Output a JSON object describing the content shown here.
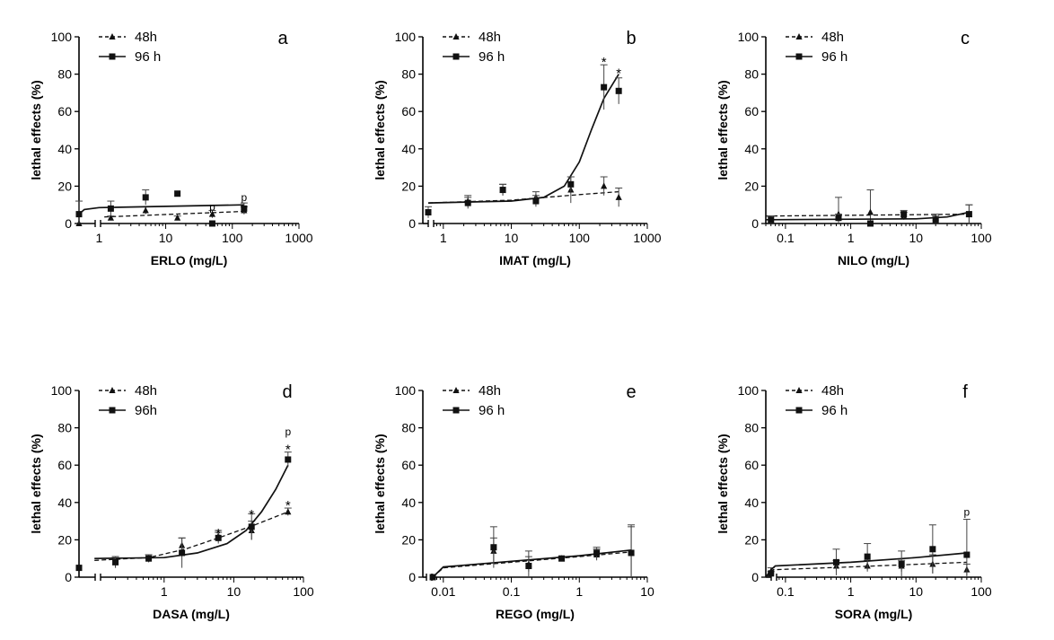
{
  "chart_data": [
    {
      "type": "scatter",
      "panel_label": "a",
      "xlabel": "ERLO (mg/L)",
      "ylabel": "lethal effects (%)",
      "xscale": "log",
      "xlim": [
        0.5,
        1000
      ],
      "ylim": [
        0,
        100
      ],
      "ytick_labels": [
        "0",
        "20",
        "40",
        "60",
        "80",
        "100"
      ],
      "xtick_labels": [
        "1",
        "10",
        "100",
        "1000"
      ],
      "legend": [
        "48h",
        "96 h"
      ],
      "legend_position": "top-left",
      "series": [
        {
          "name": "48h",
          "marker": "triangle",
          "line": "dashed",
          "x": [
            0.5,
            1.5,
            5,
            15,
            50,
            150
          ],
          "y": [
            0,
            3,
            7,
            3,
            5,
            7
          ],
          "err": [
            0,
            1,
            2,
            1,
            2,
            2
          ],
          "fit": [
            [
              1.2,
              3.5
            ],
            [
              150,
              6.5
            ]
          ]
        },
        {
          "name": "96 h",
          "marker": "square",
          "line": "solid",
          "x": [
            0.5,
            1.5,
            5,
            15,
            50,
            150
          ],
          "y": [
            5,
            8,
            14,
            16,
            0,
            8
          ],
          "err": [
            7,
            4,
            4,
            0,
            0,
            3
          ],
          "fit": [
            [
              0.5,
              5
            ],
            [
              0.6,
              7.5
            ],
            [
              1,
              8.5
            ],
            [
              150,
              10
            ]
          ]
        }
      ],
      "annotations": [
        {
          "text": "p",
          "x": 50,
          "y": 7
        },
        {
          "text": "p",
          "x": 150,
          "y": 12
        }
      ]
    },
    {
      "type": "scatter",
      "panel_label": "b",
      "xlabel": "IMAT (mg/L)",
      "ylabel": "lethal effects (%)",
      "xscale": "log",
      "xlim": [
        0.5,
        1000
      ],
      "ylim": [
        0,
        100
      ],
      "ytick_labels": [
        "0",
        "20",
        "40",
        "60",
        "80",
        "100"
      ],
      "xtick_labels": [
        "1",
        "10",
        "100",
        "1000"
      ],
      "legend": [
        "48h",
        "96 h"
      ],
      "legend_position": "top-left",
      "series": [
        {
          "name": "48h",
          "marker": "triangle",
          "line": "dashed",
          "x": [
            2.3,
            7.5,
            23,
            75,
            230,
            380
          ],
          "y": [
            12,
            18,
            14,
            18,
            20,
            14
          ],
          "err": [
            3,
            3,
            3,
            7,
            5,
            5
          ],
          "fit": [
            [
              0.6,
              11
            ],
            [
              10,
              12.5
            ],
            [
              100,
              15.5
            ],
            [
              380,
              17
            ]
          ]
        },
        {
          "name": "96 h",
          "marker": "square",
          "line": "solid",
          "x": [
            0.6,
            2.3,
            7.5,
            23,
            75,
            230,
            380
          ],
          "y": [
            6,
            11,
            18,
            12,
            21,
            73,
            71
          ],
          "err": [
            3,
            3,
            3,
            3,
            4,
            12,
            7
          ],
          "fit": [
            [
              0.6,
              11
            ],
            [
              10,
              12
            ],
            [
              30,
              14
            ],
            [
              60,
              20
            ],
            [
              100,
              33
            ],
            [
              150,
              50
            ],
            [
              230,
              67
            ],
            [
              380,
              80
            ]
          ]
        }
      ],
      "annotations": [
        {
          "text": "*",
          "x": 230,
          "y": 88
        },
        {
          "text": "*",
          "x": 380,
          "y": 82
        }
      ]
    },
    {
      "type": "scatter",
      "panel_label": "c",
      "xlabel": "NILO (mg/L)",
      "ylabel": "lethal effects (%)",
      "xscale": "log",
      "xlim": [
        0.05,
        100
      ],
      "ylim": [
        0,
        100
      ],
      "ytick_labels": [
        "0",
        "20",
        "40",
        "60",
        "80",
        "100"
      ],
      "xtick_labels": [
        "0.1",
        "1",
        "10",
        "100"
      ],
      "legend": [
        "48h",
        "96 h"
      ],
      "legend_position": "top-left",
      "series": [
        {
          "name": "48h",
          "marker": "triangle",
          "line": "dashed",
          "x": [
            0.06,
            0.65,
            2,
            6.5,
            20,
            65
          ],
          "y": [
            2,
            5,
            6,
            4,
            3,
            5
          ],
          "err": [
            2,
            9,
            12,
            2,
            2,
            5
          ],
          "fit": [
            [
              0.05,
              4
            ],
            [
              65,
              5
            ]
          ]
        },
        {
          "name": "96 h",
          "marker": "square",
          "line": "solid",
          "x": [
            0.06,
            0.65,
            2,
            6.5,
            20,
            65
          ],
          "y": [
            2,
            3,
            0,
            5,
            2,
            5
          ],
          "err": [
            2,
            2,
            0,
            2,
            2,
            5
          ],
          "fit": [
            [
              0.05,
              2
            ],
            [
              10,
              2.5
            ],
            [
              30,
              3.5
            ],
            [
              65,
              6
            ]
          ]
        }
      ],
      "annotations": []
    },
    {
      "type": "scatter",
      "panel_label": "d",
      "xlabel": "DASA (mg/L)",
      "ylabel": "lethal effects (%)",
      "xscale": "log",
      "xlim": [
        0.06,
        100
      ],
      "ylim": [
        0,
        100
      ],
      "ytick_labels": [
        "0",
        "20",
        "40",
        "60",
        "80",
        "100"
      ],
      "xtick_labels": [
        "1",
        "10",
        "100"
      ],
      "legend": [
        "48h",
        "96h"
      ],
      "legend_position": "top-left",
      "series": [
        {
          "name": "48h",
          "marker": "triangle",
          "line": "dashed",
          "x": [
            0.2,
            0.6,
            1.8,
            6,
            18,
            60
          ],
          "y": [
            8,
            10,
            17,
            22,
            25,
            35
          ],
          "err": [
            3,
            2,
            4,
            3,
            5,
            2
          ],
          "fit": [
            [
              0.1,
              9
            ],
            [
              0.6,
              10.5
            ],
            [
              2,
              15
            ],
            [
              6,
              21
            ],
            [
              20,
              28
            ],
            [
              60,
              35
            ]
          ]
        },
        {
          "name": "96h",
          "marker": "square",
          "line": "solid",
          "x": [
            0.06,
            0.2,
            0.6,
            1.8,
            6,
            18,
            60
          ],
          "y": [
            5,
            8,
            10,
            13,
            21,
            27,
            63
          ],
          "err": [
            0,
            3,
            2,
            8,
            3,
            7,
            4
          ],
          "fit": [
            [
              0.1,
              10
            ],
            [
              1,
              10.5
            ],
            [
              3,
              13
            ],
            [
              8,
              18
            ],
            [
              15,
              25
            ],
            [
              25,
              35
            ],
            [
              40,
              47
            ],
            [
              60,
              60
            ]
          ]
        }
      ],
      "annotations": [
        {
          "text": "*",
          "x": 6,
          "y": 25
        },
        {
          "text": "*",
          "x": 18,
          "y": 35
        },
        {
          "text": "*",
          "x": 60,
          "y": 40
        },
        {
          "text": "*",
          "x": 60,
          "y": 70
        },
        {
          "text": "p",
          "x": 60,
          "y": 76
        }
      ]
    },
    {
      "type": "scatter",
      "panel_label": "e",
      "xlabel": "REGO (mg/L)",
      "ylabel": "lethal effects (%)",
      "xscale": "log",
      "xlim": [
        0.005,
        10
      ],
      "ylim": [
        0,
        100
      ],
      "ytick_labels": [
        "0",
        "20",
        "40",
        "60",
        "80",
        "100"
      ],
      "xtick_labels": [
        "0.01",
        "0.1",
        "1",
        "10"
      ],
      "legend": [
        "48h",
        "96 h"
      ],
      "legend_position": "top-left",
      "series": [
        {
          "name": "48h",
          "marker": "triangle",
          "line": "dashed",
          "x": [
            0.007,
            0.055,
            0.18,
            0.55,
            1.8,
            5.8
          ],
          "y": [
            0,
            14,
            7,
            10,
            12,
            13
          ],
          "err": [
            0,
            7,
            4,
            1,
            3,
            14
          ],
          "fit": [
            [
              0.007,
              0
            ],
            [
              0.01,
              5
            ],
            [
              0.1,
              8
            ],
            [
              1,
              11
            ],
            [
              5.8,
              13.5
            ]
          ]
        },
        {
          "name": "96 h",
          "marker": "square",
          "line": "solid",
          "x": [
            0.007,
            0.055,
            0.18,
            0.55,
            1.8,
            5.8
          ],
          "y": [
            0,
            16,
            6,
            10,
            13,
            13
          ],
          "err": [
            0,
            11,
            8,
            1,
            3,
            15
          ],
          "fit": [
            [
              0.007,
              0
            ],
            [
              0.01,
              5.5
            ],
            [
              0.1,
              8.5
            ],
            [
              1,
              11.5
            ],
            [
              5.8,
              14.5
            ]
          ]
        }
      ],
      "annotations": []
    },
    {
      "type": "scatter",
      "panel_label": "f",
      "xlabel": "SORA (mg/L)",
      "ylabel": "lethal effects (%)",
      "xscale": "log",
      "xlim": [
        0.05,
        100
      ],
      "ylim": [
        0,
        100
      ],
      "ytick_labels": [
        "0",
        "20",
        "40",
        "60",
        "80",
        "100"
      ],
      "xtick_labels": [
        "0.1",
        "1",
        "10",
        "100"
      ],
      "legend": [
        "48h",
        "96 h"
      ],
      "legend_position": "top-left",
      "series": [
        {
          "name": "48h",
          "marker": "triangle",
          "line": "dashed",
          "x": [
            0.06,
            0.6,
            1.8,
            6,
            18,
            60
          ],
          "y": [
            3,
            6,
            6,
            6,
            7,
            4
          ],
          "err": [
            2,
            3,
            3,
            3,
            5,
            3
          ],
          "fit": [
            [
              0.05,
              0
            ],
            [
              0.065,
              4
            ],
            [
              1,
              5.5
            ],
            [
              60,
              8
            ]
          ]
        },
        {
          "name": "96 h",
          "marker": "square",
          "line": "solid",
          "x": [
            0.06,
            0.6,
            1.8,
            6,
            18,
            60
          ],
          "y": [
            2,
            8,
            11,
            7,
            15,
            12
          ],
          "err": [
            1,
            7,
            7,
            7,
            13,
            19
          ],
          "fit": [
            [
              0.05,
              0
            ],
            [
              0.06,
              4
            ],
            [
              0.07,
              6
            ],
            [
              1,
              8
            ],
            [
              10,
              10.5
            ],
            [
              60,
              13
            ]
          ]
        }
      ],
      "annotations": [
        {
          "text": "p",
          "x": 60,
          "y": 33
        }
      ]
    }
  ]
}
